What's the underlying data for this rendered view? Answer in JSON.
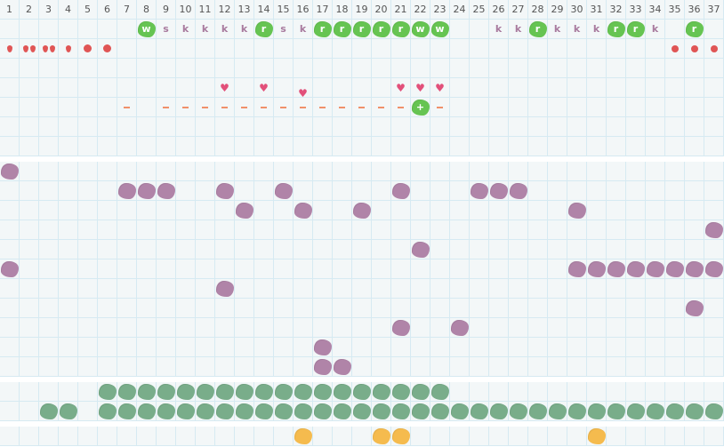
{
  "days": [
    1,
    2,
    3,
    4,
    5,
    6,
    7,
    8,
    9,
    10,
    11,
    12,
    13,
    14,
    15,
    16,
    17,
    18,
    19,
    20,
    21,
    22,
    23,
    24,
    25,
    26,
    27,
    28,
    29,
    30,
    31,
    32,
    33,
    34,
    35,
    36,
    37
  ],
  "colors": {
    "green_code": "#66c452",
    "purple": "#b084a8",
    "dark_green": "#79ad8a",
    "orange": "#f5bb4e",
    "drop_red": "#e05555",
    "heart_pink": "#e2507a",
    "dash_orange": "#f0906a",
    "code_text": "#a87a9e",
    "grid_line": "#d6eaf2",
    "background": "#f3f7f8"
  },
  "codes": [
    {
      "day": 8,
      "label": "w",
      "highlight": true
    },
    {
      "day": 9,
      "label": "s",
      "highlight": false
    },
    {
      "day": 10,
      "label": "k",
      "highlight": false
    },
    {
      "day": 11,
      "label": "k",
      "highlight": false
    },
    {
      "day": 12,
      "label": "k",
      "highlight": false
    },
    {
      "day": 13,
      "label": "k",
      "highlight": false
    },
    {
      "day": 14,
      "label": "r",
      "highlight": true
    },
    {
      "day": 15,
      "label": "s",
      "highlight": false
    },
    {
      "day": 16,
      "label": "k",
      "highlight": false
    },
    {
      "day": 17,
      "label": "r",
      "highlight": true
    },
    {
      "day": 18,
      "label": "r",
      "highlight": true
    },
    {
      "day": 19,
      "label": "r",
      "highlight": true
    },
    {
      "day": 20,
      "label": "r",
      "highlight": true
    },
    {
      "day": 21,
      "label": "r",
      "highlight": true
    },
    {
      "day": 22,
      "label": "w",
      "highlight": true
    },
    {
      "day": 23,
      "label": "w",
      "highlight": true
    },
    {
      "day": 26,
      "label": "k",
      "highlight": false
    },
    {
      "day": 27,
      "label": "k",
      "highlight": false
    },
    {
      "day": 28,
      "label": "r",
      "highlight": true
    },
    {
      "day": 29,
      "label": "k",
      "highlight": false
    },
    {
      "day": 30,
      "label": "k",
      "highlight": false
    },
    {
      "day": 31,
      "label": "k",
      "highlight": false
    },
    {
      "day": 32,
      "label": "r",
      "highlight": true
    },
    {
      "day": 33,
      "label": "r",
      "highlight": true
    },
    {
      "day": 34,
      "label": "k",
      "highlight": false
    },
    {
      "day": 36,
      "label": "r",
      "highlight": true
    }
  ],
  "flow": [
    {
      "day": 1,
      "mark": "drop",
      "count": 1
    },
    {
      "day": 2,
      "mark": "drop",
      "count": 2
    },
    {
      "day": 3,
      "mark": "drop",
      "count": 2
    },
    {
      "day": 4,
      "mark": "drop",
      "count": 1
    },
    {
      "day": 5,
      "mark": "dot",
      "count": 1
    },
    {
      "day": 6,
      "mark": "dot",
      "count": 1
    },
    {
      "day": 35,
      "mark": "dot-small",
      "count": 1
    },
    {
      "day": 36,
      "mark": "dot-small",
      "count": 1
    },
    {
      "day": 37,
      "mark": "dot-small",
      "count": 1
    }
  ],
  "hearts": [
    12,
    14,
    16,
    21,
    22,
    23
  ],
  "tests": {
    "negative_days": [
      7,
      9,
      10,
      11,
      12,
      13,
      14,
      15,
      16,
      17,
      18,
      19,
      20,
      21,
      23
    ],
    "positive": {
      "day": 22,
      "label": "+"
    }
  },
  "symptom_rows": [
    [
      1
    ],
    [
      7,
      8,
      9,
      12,
      15,
      21,
      25,
      26,
      27
    ],
    [
      13,
      16,
      19,
      30
    ],
    [
      37
    ],
    [
      22
    ],
    [
      1,
      30,
      31,
      32,
      33,
      34,
      35,
      36,
      37
    ],
    [
      12
    ],
    [
      36
    ],
    [
      21,
      24
    ],
    [
      17
    ],
    [
      17,
      18
    ]
  ],
  "green_rows": [
    [
      6,
      7,
      8,
      9,
      10,
      11,
      12,
      13,
      14,
      15,
      16,
      17,
      18,
      19,
      20,
      21,
      22,
      23
    ],
    [
      3,
      4,
      6,
      7,
      8,
      9,
      10,
      11,
      12,
      13,
      14,
      15,
      16,
      17,
      18,
      19,
      20,
      21,
      22,
      23,
      24,
      25,
      26,
      27,
      28,
      29,
      30,
      31,
      32,
      33,
      34,
      35,
      36,
      37
    ]
  ],
  "orange_rows": [
    [
      16,
      20,
      21,
      31
    ]
  ]
}
